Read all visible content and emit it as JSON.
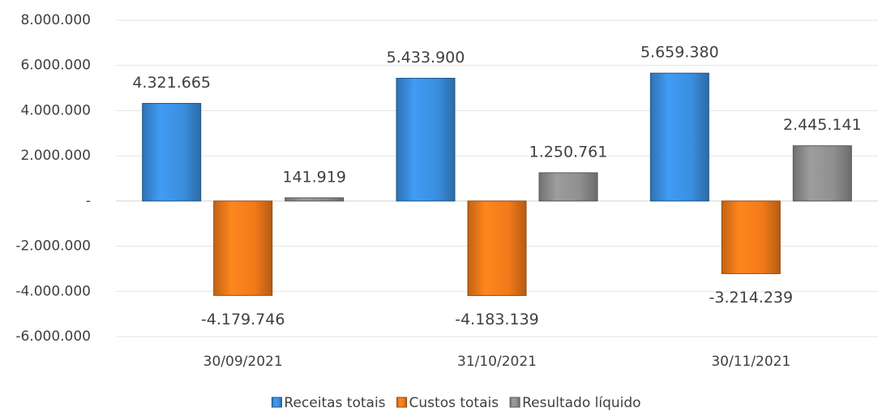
{
  "chart_data": {
    "type": "bar",
    "categories": [
      "30/09/2021",
      "31/10/2021",
      "30/11/2021"
    ],
    "series": [
      {
        "name": "Receitas totais",
        "color": "#3a8ede",
        "values": [
          4321665,
          5433900,
          5659380
        ],
        "value_labels": [
          "4.321.665",
          "5.433.900",
          "5.659.380"
        ]
      },
      {
        "name": "Custos totais",
        "color": "#f27a1a",
        "values": [
          -4179746,
          -4183139,
          -3214239
        ],
        "value_labels": [
          "-4.179.746",
          "-4.183.139",
          "-3.214.239"
        ]
      },
      {
        "name": "Resultado líquido",
        "color": "#8f8f8f",
        "values": [
          141919,
          1250761,
          2445141
        ],
        "value_labels": [
          "141.919",
          "1.250.761",
          "2.445.141"
        ]
      }
    ],
    "ylim": [
      -6000000,
      8000000
    ],
    "yticks": [
      {
        "value": -6000000,
        "label": "-6.000.000"
      },
      {
        "value": -4000000,
        "label": "-4.000.000"
      },
      {
        "value": -2000000,
        "label": "-2.000.000"
      },
      {
        "value": 0,
        "label": "-"
      },
      {
        "value": 2000000,
        "label": "2.000.000"
      },
      {
        "value": 4000000,
        "label": "4.000.000"
      },
      {
        "value": 6000000,
        "label": "6.000.000"
      },
      {
        "value": 8000000,
        "label": "8.000.000"
      }
    ],
    "grid": true,
    "legend": "bottom"
  }
}
